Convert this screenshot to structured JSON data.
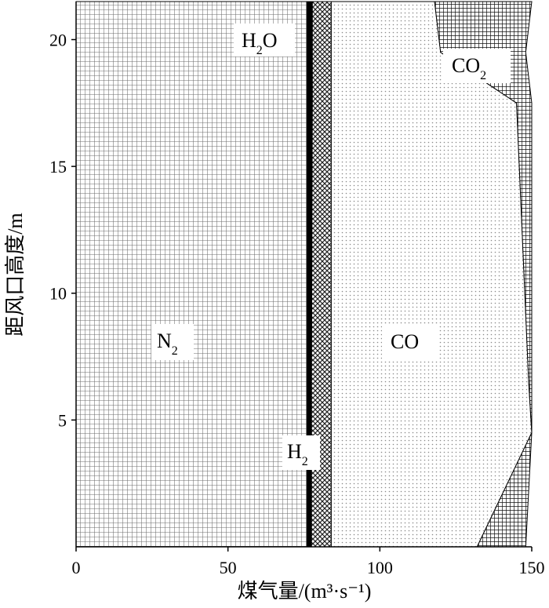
{
  "chart_data": {
    "type": "area",
    "stacked": true,
    "orientation": "horizontal",
    "xlabel": "煤气量/(m³·s⁻¹)",
    "ylabel": "距风口高度/m",
    "xlim": [
      0,
      150
    ],
    "ylim": [
      0,
      21.5
    ],
    "x_ticks": [
      0,
      50,
      100,
      150
    ],
    "y_ticks": [
      5,
      10,
      15,
      20
    ],
    "grid": false,
    "heights": [
      0,
      4.5,
      6.5,
      17.5,
      19.5,
      21.5
    ],
    "series": [
      {
        "name": "N₂",
        "label_main": "N",
        "label_sub": "2",
        "values": [
          76,
          76,
          76,
          76,
          76,
          76
        ],
        "fill": "grid",
        "color": "#7a7a7a"
      },
      {
        "name": "H₂O",
        "label_main": "H",
        "label_sub": "2",
        "label_tail": "O",
        "values": [
          1.5,
          1.5,
          1.5,
          1.8,
          1.8,
          1.8
        ],
        "fill": "solid",
        "color": "#000000"
      },
      {
        "name": "H₂",
        "label_main": "H",
        "label_sub": "2",
        "values": [
          6.5,
          6.5,
          6.5,
          6.2,
          6.2,
          6.2
        ],
        "fill": "crosshatch",
        "color": "#333333"
      },
      {
        "name": "CO",
        "label_main": "CO",
        "values": [
          48,
          66,
          65,
          61,
          36,
          34
        ],
        "fill": "dots",
        "color": "#999999"
      },
      {
        "name": "CO₂",
        "label_main": "CO",
        "label_sub": "2",
        "values": [
          16,
          0,
          1,
          5,
          28,
          32
        ],
        "fill": "finegrid",
        "color": "#222222"
      }
    ]
  }
}
